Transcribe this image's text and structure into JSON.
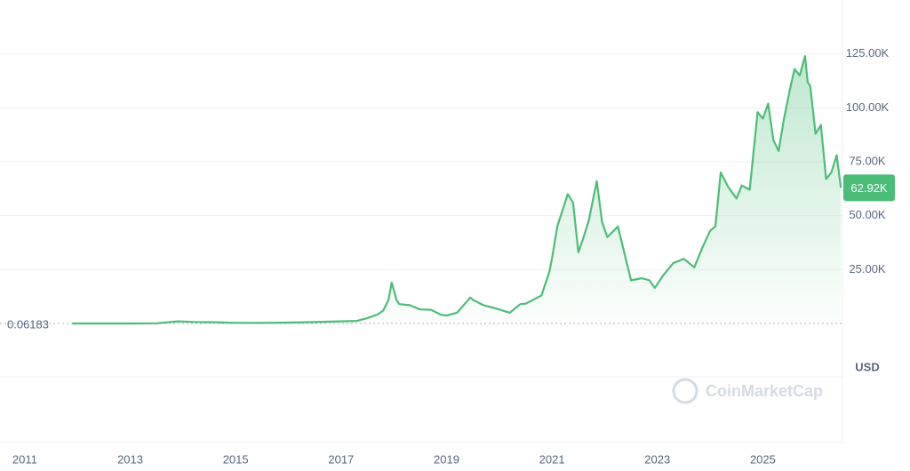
{
  "chart_data": {
    "type": "area",
    "x": [
      2011.9,
      2012.5,
      2013.0,
      2013.5,
      2013.9,
      2014.2,
      2014.5,
      2015.0,
      2015.5,
      2016.0,
      2016.5,
      2017.0,
      2017.3,
      2017.5,
      2017.7,
      2017.8,
      2017.9,
      2017.96,
      2018.05,
      2018.1,
      2018.3,
      2018.5,
      2018.7,
      2018.9,
      2019.0,
      2019.2,
      2019.45,
      2019.5,
      2019.7,
      2019.9,
      2020.2,
      2020.4,
      2020.5,
      2020.8,
      2020.95,
      2021.0,
      2021.1,
      2021.3,
      2021.4,
      2021.5,
      2021.6,
      2021.7,
      2021.85,
      2021.95,
      2022.05,
      2022.25,
      2022.4,
      2022.5,
      2022.7,
      2022.85,
      2022.95,
      2023.1,
      2023.3,
      2023.5,
      2023.7,
      2023.85,
      2024.0,
      2024.1,
      2024.2,
      2024.35,
      2024.5,
      2024.6,
      2024.75,
      2024.9,
      2025.0,
      2025.1,
      2025.2,
      2025.3,
      2025.4,
      2025.5,
      2025.6,
      2025.7,
      2025.8,
      2025.85,
      2025.9,
      2026.0,
      2026.1,
      2026.2,
      2026.3,
      2026.4,
      2026.48
    ],
    "values": [
      3,
      6,
      13,
      100,
      1000,
      700,
      600,
      300,
      260,
      430,
      650,
      1000,
      1200,
      2500,
      4300,
      6000,
      11000,
      19000,
      11000,
      9000,
      8500,
      6500,
      6400,
      4000,
      3700,
      5000,
      12000,
      11000,
      8500,
      7200,
      5000,
      9000,
      9200,
      13000,
      24000,
      30000,
      45000,
      60000,
      56000,
      33000,
      40000,
      48000,
      66000,
      47000,
      40000,
      45000,
      30000,
      20000,
      21000,
      20000,
      16500,
      22000,
      28000,
      30000,
      26000,
      35000,
      43000,
      45000,
      70000,
      63000,
      58000,
      64000,
      62000,
      98000,
      95000,
      102000,
      85000,
      80000,
      95000,
      107000,
      118000,
      115000,
      124000,
      112000,
      110000,
      88000,
      92000,
      67000,
      70000,
      78000,
      62920
    ],
    "color": "#4cbd78",
    "xlim": [
      2010.53,
      2026.51
    ],
    "xticks": [
      2011,
      2013,
      2015,
      2017,
      2019,
      2021,
      2023,
      2025
    ],
    "ylim": [
      0,
      150000
    ],
    "yticks": [
      {
        "value": 25000,
        "label": "25.00K"
      },
      {
        "value": 50000,
        "label": "50.00K"
      },
      {
        "value": 75000,
        "label": "75.00K"
      },
      {
        "value": 100000,
        "label": "100.00K"
      },
      {
        "value": 125000,
        "label": "125.00K"
      }
    ],
    "grid": true,
    "current_price": {
      "value": 62920,
      "label": "62.92K"
    },
    "start_price": 0.06183,
    "currency": "USD",
    "watermark": "CoinMarketCap"
  }
}
